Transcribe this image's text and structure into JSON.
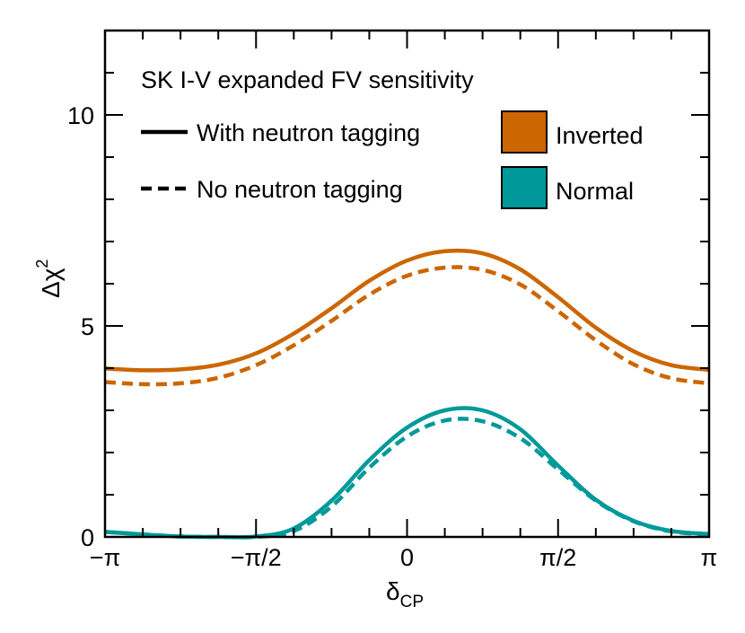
{
  "chart_data": {
    "type": "line",
    "title": "SK I-V expanded FV sensitivity",
    "xlabel": "δ",
    "xlabel_sub": "CP",
    "ylabel": "Δχ",
    "ylabel_sup": "2",
    "xlim": [
      -3.14159,
      3.14159
    ],
    "ylim": [
      0,
      12
    ],
    "xticks": [
      {
        "value": -3.14159,
        "label": "−π"
      },
      {
        "value": -1.5708,
        "label": "−π/2"
      },
      {
        "value": 0,
        "label": "0"
      },
      {
        "value": 1.5708,
        "label": "π/2"
      },
      {
        "value": 3.14159,
        "label": "π"
      }
    ],
    "yticks": [
      {
        "value": 0,
        "label": "0"
      },
      {
        "value": 5,
        "label": "5"
      },
      {
        "value": 10,
        "label": "10"
      }
    ],
    "x": [
      -3.1416,
      -2.7489,
      -2.3562,
      -1.9635,
      -1.5708,
      -1.1781,
      -0.7854,
      -0.3927,
      0.0,
      0.3927,
      0.7854,
      1.1781,
      1.5708,
      1.9635,
      2.3562,
      2.7489,
      3.1416
    ],
    "series": [
      {
        "name": "Inverted, with neutron tagging",
        "ordering": "Inverted",
        "style": "solid",
        "color": "#cc6600",
        "values": [
          3.99,
          3.95,
          3.97,
          4.08,
          4.35,
          4.82,
          5.42,
          6.07,
          6.55,
          6.77,
          6.72,
          6.34,
          5.68,
          4.96,
          4.4,
          4.07,
          3.96
        ]
      },
      {
        "name": "Inverted, no neutron tagging",
        "ordering": "Inverted",
        "style": "dashed",
        "color": "#cc6600",
        "values": [
          3.67,
          3.62,
          3.64,
          3.77,
          4.07,
          4.54,
          5.12,
          5.74,
          6.19,
          6.38,
          6.33,
          5.98,
          5.35,
          4.66,
          4.09,
          3.76,
          3.64
        ]
      },
      {
        "name": "Normal, with neutron tagging",
        "ordering": "Normal",
        "style": "solid",
        "color": "#009999",
        "values": [
          0.12,
          0.06,
          0.01,
          0.0,
          0.01,
          0.2,
          0.86,
          1.82,
          2.59,
          3.0,
          3.0,
          2.55,
          1.69,
          0.88,
          0.38,
          0.14,
          0.07
        ]
      },
      {
        "name": "Normal, no neutron tagging",
        "ordering": "Normal",
        "style": "dashed",
        "color": "#009999",
        "values": [
          0.12,
          0.06,
          0.01,
          0.0,
          0.0,
          0.14,
          0.72,
          1.64,
          2.38,
          2.76,
          2.74,
          2.34,
          1.6,
          0.86,
          0.37,
          0.13,
          0.06
        ]
      }
    ],
    "legend": {
      "line_styles": [
        {
          "label": "With neutron tagging",
          "style": "solid"
        },
        {
          "label": "No neutron tagging",
          "style": "dashed"
        }
      ],
      "orderings": [
        {
          "label": "Inverted",
          "color": "#cc6600"
        },
        {
          "label": "Normal",
          "color": "#009999"
        }
      ],
      "placement": "top"
    },
    "grid": false
  }
}
